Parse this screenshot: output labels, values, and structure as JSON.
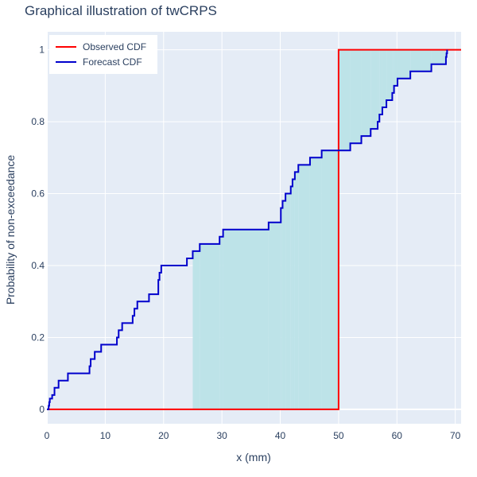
{
  "chart_data": {
    "type": "line",
    "title": "Graphical illustration of twCRPS",
    "xlabel": "x (mm)",
    "ylabel": "Probability of non-exceedance",
    "xlim": [
      0,
      71
    ],
    "ylim": [
      -0.04,
      1.05
    ],
    "x_ticks": [
      0,
      10,
      20,
      30,
      40,
      50,
      60,
      70
    ],
    "y_ticks": [
      0,
      0.2,
      0.4,
      0.6,
      0.8,
      1
    ],
    "grid": true,
    "legend_position": "top-left",
    "shaded_region": {
      "x_from": 25,
      "x_to": 69,
      "color": "#bde3e8"
    },
    "series": [
      {
        "name": "Observed CDF",
        "color": "#ff0000",
        "x": [
          0,
          50,
          50,
          71
        ],
        "y": [
          0,
          0,
          1,
          1
        ]
      },
      {
        "name": "Forecast CDF",
        "color": "#0000cc",
        "x": [
          0,
          0.3,
          0.4,
          0.5,
          0.9,
          1.3,
          2.0,
          3.6,
          7.3,
          7.5,
          8.2,
          9.3,
          12.0,
          12.3,
          12.9,
          14.7,
          15.0,
          15.5,
          17.5,
          19.1,
          19.3,
          19.6,
          24.0,
          25.0,
          26.2,
          29.6,
          30.2,
          38.0,
          40.1,
          40.4,
          40.9,
          41.8,
          42.1,
          42.5,
          43.1,
          45.1,
          47.1,
          52.0,
          53.9,
          55.5,
          56.7,
          57.0,
          57.5,
          58.2,
          59.2,
          59.5,
          60.1,
          62.3,
          65.9,
          68.4,
          68.5,
          68.6
        ],
        "y": [
          0,
          0.01,
          0.02,
          0.03,
          0.04,
          0.06,
          0.08,
          0.1,
          0.12,
          0.14,
          0.16,
          0.18,
          0.2,
          0.22,
          0.24,
          0.26,
          0.28,
          0.3,
          0.32,
          0.36,
          0.38,
          0.4,
          0.42,
          0.44,
          0.46,
          0.48,
          0.5,
          0.52,
          0.56,
          0.58,
          0.6,
          0.62,
          0.64,
          0.66,
          0.68,
          0.7,
          0.72,
          0.74,
          0.76,
          0.78,
          0.8,
          0.82,
          0.84,
          0.86,
          0.88,
          0.9,
          0.92,
          0.94,
          0.96,
          0.98,
          0.99,
          1.0
        ]
      }
    ]
  }
}
